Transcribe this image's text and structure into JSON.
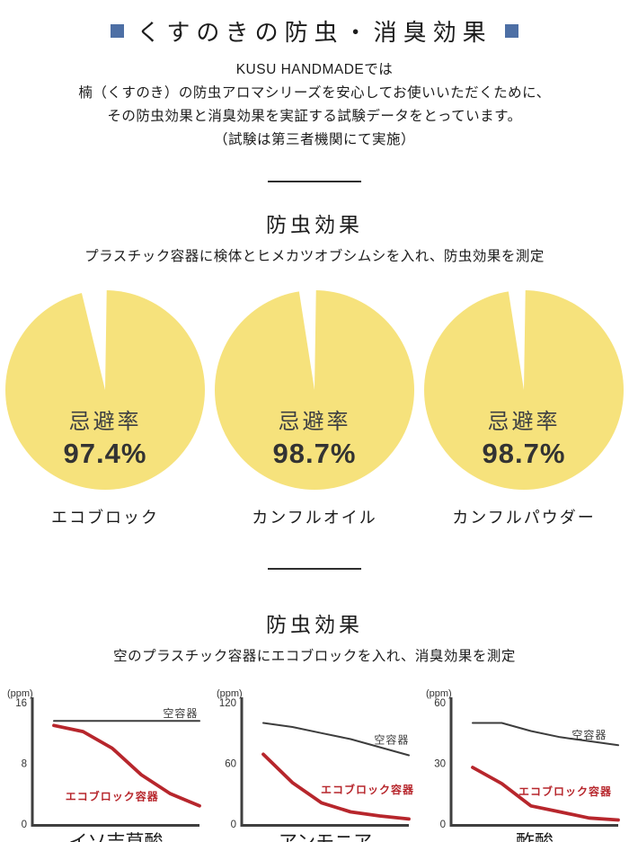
{
  "title": {
    "text": "くすのきの防虫・消臭効果",
    "square_color": "#4d6fa5"
  },
  "intro": {
    "lines": [
      "KUSU HANDMADEでは",
      "楠（くすのき）の防虫アロマシリーズを安心してお使いいただくために、",
      "その防虫効果と消臭効果を実証する試験データをとっています。",
      "（試験は第三者機関にて実施）"
    ]
  },
  "sections": {
    "repellent": {
      "heading": "防虫効果",
      "description": "プラスチック容器に検体とヒメカツオブシムシを入れ、防虫効果を測定"
    },
    "deodorant": {
      "heading": "防虫効果",
      "description": "空のプラスチック容器にエコブロックを入れ、消臭効果を測定"
    }
  },
  "colors": {
    "pie_fill": "#f6e27c",
    "empty_line": "#3d3d3d",
    "eco_line": "#b7262c",
    "axis": "#3f3f3f",
    "text": "#1e1e1e"
  },
  "chart_data": [
    {
      "type": "pie",
      "metric": "忌避率",
      "value_text": "97.4%",
      "value_pct": 97.4,
      "caption": "エコブロック"
    },
    {
      "type": "pie",
      "metric": "忌避率",
      "value_text": "98.7%",
      "value_pct": 98.7,
      "caption": "カンフルオイル"
    },
    {
      "type": "pie",
      "metric": "忌避率",
      "value_text": "98.7%",
      "value_pct": 98.7,
      "caption": "カンフルパウダー"
    },
    {
      "type": "line",
      "title": "イソ吉草酸",
      "ylabel": "(ppm)",
      "ylim": [
        0,
        16
      ],
      "yticks": [
        0,
        8,
        16
      ],
      "x": [
        0,
        1,
        2,
        3,
        4,
        5
      ],
      "series": [
        {
          "name": "空容器",
          "color": "#3d3d3d",
          "values": [
            13.6,
            13.6,
            13.6,
            13.6,
            13.6,
            13.6
          ],
          "label_at": {
            "x": 4.35,
            "y": 14.6
          }
        },
        {
          "name": "エコブロック容器",
          "color": "#b7262c",
          "values": [
            13,
            12.2,
            10,
            6.5,
            4,
            2.4
          ],
          "label_at": {
            "x": 2.0,
            "y": 3.6
          }
        }
      ]
    },
    {
      "type": "line",
      "title": "アンモニア",
      "ylabel": "(ppm)",
      "ylim": [
        0,
        120
      ],
      "yticks": [
        0,
        60,
        120
      ],
      "x": [
        0,
        1,
        2,
        3,
        4,
        5
      ],
      "series": [
        {
          "name": "空容器",
          "color": "#3d3d3d",
          "values": [
            100,
            96,
            90,
            84,
            76,
            68
          ],
          "label_at": {
            "x": 4.41,
            "y": 83
          }
        },
        {
          "name": "エコブロック容器",
          "color": "#b7262c",
          "values": [
            69,
            41,
            21,
            12,
            8,
            5
          ],
          "label_at": {
            "x": 3.58,
            "y": 34
          }
        }
      ]
    },
    {
      "type": "line",
      "title": "酢酸",
      "ylabel": "(ppm)",
      "ylim": [
        0,
        60
      ],
      "yticks": [
        0,
        30,
        60
      ],
      "x": [
        0,
        1,
        2,
        3,
        4,
        5
      ],
      "series": [
        {
          "name": "空容器",
          "color": "#3d3d3d",
          "values": [
            50,
            50,
            46,
            43,
            41,
            39
          ],
          "label_at": {
            "x": 4.01,
            "y": 44
          }
        },
        {
          "name": "エコブロック容器",
          "color": "#b7262c",
          "values": [
            28,
            20,
            9,
            6,
            3,
            2
          ],
          "label_at": {
            "x": 3.18,
            "y": 16
          }
        }
      ]
    }
  ]
}
